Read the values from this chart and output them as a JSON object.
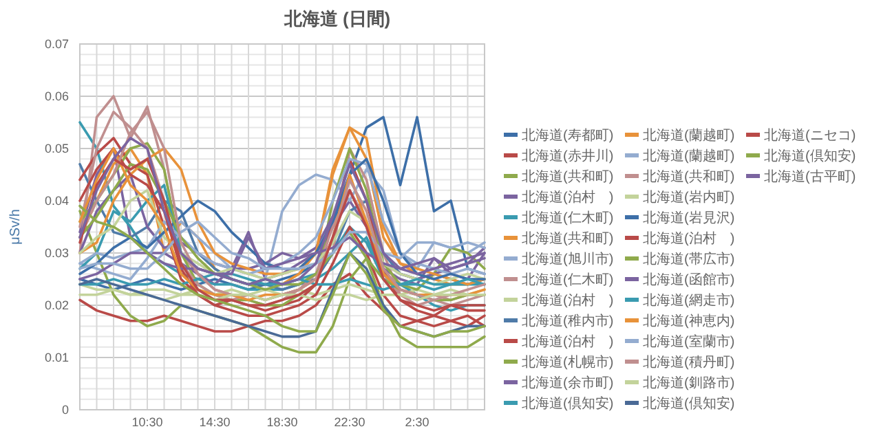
{
  "chart_data": {
    "type": "line",
    "title": "北海道 (日間)",
    "ylabel": "μSv/h",
    "legend": "right",
    "grid": true,
    "marker": "none",
    "line_style": "solid",
    "categories": [
      null,
      null,
      null,
      null,
      "10:30",
      null,
      null,
      null,
      "14:30",
      null,
      null,
      null,
      "18:30",
      null,
      null,
      null,
      "22:30",
      null,
      null,
      null,
      "2:30",
      null,
      null,
      null,
      null
    ],
    "ylim": [
      0,
      0.07
    ],
    "yticks": [
      0,
      {
        "value": 0.002,
        "label": null
      },
      {
        "value": 0.004,
        "label": null
      },
      {
        "value": 0.006,
        "label": null
      },
      {
        "value": 0.008,
        "label": null
      },
      0.01,
      {
        "value": 0.012,
        "label": null
      },
      {
        "value": 0.014,
        "label": null
      },
      {
        "value": 0.016,
        "label": null
      },
      {
        "value": 0.018,
        "label": null
      },
      0.02,
      {
        "value": 0.022,
        "label": null
      },
      {
        "value": 0.024,
        "label": null
      },
      {
        "value": 0.026,
        "label": null
      },
      {
        "value": 0.028,
        "label": null
      },
      0.03,
      {
        "value": 0.032,
        "label": null
      },
      {
        "value": 0.034,
        "label": null
      },
      {
        "value": 0.036,
        "label": null
      },
      {
        "value": 0.038,
        "label": null
      },
      0.04,
      {
        "value": 0.042,
        "label": null
      },
      {
        "value": 0.044,
        "label": null
      },
      {
        "value": 0.046,
        "label": null
      },
      {
        "value": 0.048,
        "label": null
      },
      0.05,
      {
        "value": 0.052,
        "label": null
      },
      {
        "value": 0.054,
        "label": null
      },
      {
        "value": 0.056,
        "label": null
      },
      {
        "value": 0.058,
        "label": null
      },
      0.06,
      {
        "value": 0.062,
        "label": null
      },
      {
        "value": 0.064,
        "label": null
      },
      {
        "value": 0.066,
        "label": null
      },
      {
        "value": 0.068,
        "label": null
      },
      0.07
    ],
    "series": [
      {
        "name": "北海道(寿都町)",
        "color": "#3d6fa8",
        "values": [
          0.025,
          0.024,
          0.023,
          0.024,
          0.025,
          0.024,
          0.023,
          0.024,
          0.025,
          0.024,
          0.023,
          0.024,
          0.025,
          0.026,
          0.028,
          0.035,
          0.045,
          0.054,
          0.056,
          0.043,
          0.056,
          0.038,
          0.04,
          0.027,
          0.026
        ]
      },
      {
        "name": "北海道(赤井川)",
        "color": "#b94a48",
        "values": [
          0.021,
          0.019,
          0.018,
          0.017,
          0.017,
          0.018,
          0.017,
          0.016,
          0.015,
          0.015,
          0.016,
          0.017,
          0.017,
          0.018,
          0.02,
          0.024,
          0.026,
          0.022,
          0.019,
          0.016,
          0.017,
          0.018,
          0.017,
          0.016,
          0.018
        ]
      },
      {
        "name": "北海道(共和町)",
        "color": "#8faa4c",
        "values": [
          0.038,
          0.03,
          0.022,
          0.018,
          0.016,
          0.017,
          0.02,
          0.019,
          0.018,
          0.017,
          0.016,
          0.014,
          0.012,
          0.011,
          0.011,
          0.016,
          0.025,
          0.029,
          0.02,
          0.014,
          0.012,
          0.012,
          0.012,
          0.012,
          0.014
        ]
      },
      {
        "name": "北海道(泊村　)",
        "color": "#7b64a0",
        "values": [
          0.034,
          0.045,
          0.05,
          0.033,
          0.03,
          0.03,
          0.028,
          0.026,
          0.024,
          0.027,
          0.034,
          0.025,
          0.026,
          0.028,
          0.03,
          0.035,
          0.04,
          0.035,
          0.027,
          0.025,
          0.024,
          0.029,
          0.026,
          0.025,
          0.03
        ]
      },
      {
        "name": "北海道(仁木町)",
        "color": "#3a9bb0",
        "values": [
          0.055,
          0.05,
          0.039,
          0.035,
          0.03,
          0.028,
          0.026,
          0.025,
          0.024,
          0.024,
          0.023,
          0.023,
          0.023,
          0.024,
          0.025,
          0.027,
          0.03,
          0.033,
          0.026,
          0.024,
          0.022,
          0.02,
          0.019,
          0.02,
          0.02
        ]
      },
      {
        "name": "北海道(共和町)",
        "color": "#e8923a",
        "values": [
          0.033,
          0.04,
          0.047,
          0.05,
          0.045,
          0.03,
          0.036,
          0.033,
          0.027,
          0.025,
          0.024,
          0.025,
          0.024,
          0.026,
          0.03,
          0.046,
          0.054,
          0.052,
          0.035,
          0.028,
          0.026,
          0.025,
          0.024,
          0.024,
          0.025
        ]
      },
      {
        "name": "北海道(旭川市)",
        "color": "#94acd0",
        "values": [
          0.028,
          0.027,
          0.026,
          0.025,
          0.029,
          0.034,
          0.036,
          0.033,
          0.03,
          0.027,
          0.026,
          0.025,
          0.038,
          0.043,
          0.045,
          0.044,
          0.04,
          0.046,
          0.042,
          0.03,
          0.027,
          0.032,
          0.031,
          0.03,
          0.032
        ]
      },
      {
        "name": "北海道(仁木町)",
        "color": "#c08f8f",
        "values": [
          0.03,
          0.056,
          0.06,
          0.052,
          0.058,
          0.046,
          0.03,
          0.026,
          0.023,
          0.022,
          0.021,
          0.02,
          0.021,
          0.023,
          0.025,
          0.03,
          0.05,
          0.044,
          0.03,
          0.022,
          0.02,
          0.021,
          0.02,
          0.021,
          0.022
        ]
      },
      {
        "name": "北海道(泊村　)",
        "color": "#c3d39b",
        "values": [
          0.024,
          0.023,
          0.023,
          0.022,
          0.023,
          0.023,
          0.022,
          0.023,
          0.022,
          0.023,
          0.022,
          0.023,
          0.022,
          0.023,
          0.022,
          0.023,
          0.024,
          0.023,
          0.022,
          0.022,
          0.023,
          0.022,
          0.023,
          0.022,
          0.023
        ]
      },
      {
        "name": "北海道(稚内市)",
        "color": "#4f7ba8",
        "values": [
          0.047,
          0.04,
          0.034,
          0.033,
          0.035,
          0.04,
          0.038,
          0.03,
          0.027,
          0.025,
          0.024,
          0.024,
          0.023,
          0.024,
          0.025,
          0.03,
          0.038,
          0.04,
          0.03,
          0.026,
          0.025,
          0.026,
          0.025,
          0.024,
          0.025
        ]
      },
      {
        "name": "北海道(泊村　)",
        "color": "#b94a48",
        "values": [
          0.044,
          0.049,
          0.052,
          0.047,
          0.045,
          0.035,
          0.025,
          0.022,
          0.02,
          0.021,
          0.02,
          0.019,
          0.02,
          0.021,
          0.024,
          0.036,
          0.048,
          0.04,
          0.027,
          0.021,
          0.019,
          0.018,
          0.02,
          0.019,
          0.019
        ]
      },
      {
        "name": "北海道(札幌市)",
        "color": "#8faa4c",
        "values": [
          0.036,
          0.04,
          0.045,
          0.05,
          0.051,
          0.046,
          0.03,
          0.024,
          0.022,
          0.021,
          0.021,
          0.02,
          0.02,
          0.022,
          0.024,
          0.04,
          0.05,
          0.042,
          0.028,
          0.024,
          0.023,
          0.026,
          0.031,
          0.03,
          0.027
        ]
      },
      {
        "name": "北海道(余市町)",
        "color": "#7b64a0",
        "values": [
          0.03,
          0.038,
          0.042,
          0.045,
          0.035,
          0.031,
          0.032,
          0.03,
          0.028,
          0.027,
          0.027,
          0.028,
          0.03,
          0.029,
          0.031,
          0.037,
          0.042,
          0.036,
          0.028,
          0.026,
          0.025,
          0.026,
          0.027,
          0.028,
          0.031
        ]
      },
      {
        "name": "北海道(倶知安)",
        "color": "#3a9bb0",
        "values": [
          0.027,
          0.03,
          0.038,
          0.036,
          0.04,
          0.043,
          0.03,
          0.027,
          0.026,
          0.026,
          0.025,
          0.024,
          0.024,
          0.025,
          0.026,
          0.03,
          0.035,
          0.032,
          0.025,
          0.024,
          0.024,
          0.023,
          0.024,
          0.024,
          0.024
        ]
      },
      {
        "name": "北海道(蘭越町)",
        "color": "#e8923a",
        "values": [
          0.03,
          0.032,
          0.04,
          0.045,
          0.048,
          0.05,
          0.046,
          0.036,
          0.03,
          0.028,
          0.027,
          0.026,
          0.026,
          0.027,
          0.03,
          0.045,
          0.054,
          0.048,
          0.033,
          0.028,
          0.027,
          0.026,
          0.025,
          0.024,
          0.025
        ]
      },
      {
        "name": "北海道(蘭越町)",
        "color": "#94acd0",
        "values": [
          0.028,
          0.03,
          0.029,
          0.03,
          0.031,
          0.036,
          0.033,
          0.03,
          0.028,
          0.027,
          0.026,
          0.027,
          0.028,
          0.03,
          0.033,
          0.04,
          0.048,
          0.047,
          0.036,
          0.03,
          0.028,
          0.027,
          0.026,
          0.027,
          0.026
        ]
      },
      {
        "name": "北海道(共和町)",
        "color": "#c08f8f",
        "values": [
          0.035,
          0.05,
          0.057,
          0.054,
          0.05,
          0.04,
          0.028,
          0.024,
          0.022,
          0.021,
          0.022,
          0.021,
          0.022,
          0.023,
          0.026,
          0.035,
          0.042,
          0.036,
          0.026,
          0.022,
          0.021,
          0.022,
          0.021,
          0.022,
          0.022
        ]
      },
      {
        "name": "北海道(岩内町)",
        "color": "#c3d39b",
        "values": [
          0.03,
          0.033,
          0.035,
          0.04,
          0.042,
          0.033,
          0.03,
          0.028,
          0.026,
          0.027,
          0.026,
          0.025,
          0.026,
          0.027,
          0.028,
          0.032,
          0.038,
          0.036,
          0.028,
          0.026,
          0.025,
          0.024,
          0.025,
          0.026,
          0.025
        ]
      },
      {
        "name": "北海道(岩見沢)",
        "color": "#3d6fa8",
        "values": [
          0.026,
          0.028,
          0.031,
          0.033,
          0.031,
          0.034,
          0.037,
          0.04,
          0.038,
          0.034,
          0.031,
          0.028,
          0.027,
          0.027,
          0.03,
          0.036,
          0.045,
          0.048,
          0.04,
          0.03,
          0.026,
          0.025,
          0.026,
          0.025,
          0.025
        ]
      },
      {
        "name": "北海道(泊村　)",
        "color": "#b94a48",
        "values": [
          0.04,
          0.046,
          0.05,
          0.045,
          0.043,
          0.038,
          0.027,
          0.022,
          0.02,
          0.019,
          0.018,
          0.018,
          0.019,
          0.02,
          0.022,
          0.028,
          0.035,
          0.03,
          0.022,
          0.018,
          0.017,
          0.016,
          0.017,
          0.018,
          0.016
        ]
      },
      {
        "name": "北海道(帯広市)",
        "color": "#8faa4c",
        "values": [
          0.033,
          0.037,
          0.042,
          0.047,
          0.046,
          0.04,
          0.033,
          0.029,
          0.026,
          0.025,
          0.024,
          0.023,
          0.024,
          0.024,
          0.026,
          0.03,
          0.034,
          0.029,
          0.025,
          0.023,
          0.022,
          0.021,
          0.021,
          0.022,
          0.022
        ]
      },
      {
        "name": "北海道(函館市)",
        "color": "#7b64a0",
        "values": [
          0.025,
          0.026,
          0.028,
          0.03,
          0.03,
          0.028,
          0.027,
          0.027,
          0.026,
          0.026,
          0.033,
          0.027,
          0.028,
          0.029,
          0.03,
          0.031,
          0.033,
          0.03,
          0.028,
          0.027,
          0.028,
          0.029,
          0.027,
          0.028,
          0.029
        ]
      },
      {
        "name": "北海道(網走市)",
        "color": "#3a9bb0",
        "values": [
          0.024,
          0.024,
          0.025,
          0.024,
          0.024,
          0.025,
          0.024,
          0.025,
          0.026,
          0.025,
          0.024,
          0.025,
          0.024,
          0.025,
          0.024,
          0.024,
          0.025,
          0.024,
          0.023,
          0.024,
          0.025,
          0.024,
          0.024,
          0.025,
          0.024
        ]
      },
      {
        "name": "北海道(神恵内)",
        "color": "#e8923a",
        "values": [
          0.036,
          0.044,
          0.05,
          0.043,
          0.04,
          0.035,
          0.026,
          0.023,
          0.022,
          0.022,
          0.021,
          0.022,
          0.022,
          0.023,
          0.025,
          0.033,
          0.045,
          0.036,
          0.026,
          0.023,
          0.022,
          0.022,
          0.022,
          0.022,
          0.023
        ]
      },
      {
        "name": "北海道(室蘭市)",
        "color": "#94acd0",
        "values": [
          0.027,
          0.028,
          0.028,
          0.027,
          0.027,
          0.03,
          0.034,
          0.036,
          0.033,
          0.03,
          0.029,
          0.027,
          0.027,
          0.027,
          0.028,
          0.03,
          0.034,
          0.034,
          0.03,
          0.029,
          0.032,
          0.032,
          0.031,
          0.032,
          0.031
        ]
      },
      {
        "name": "北海道(積丹町)",
        "color": "#c08f8f",
        "values": [
          0.033,
          0.04,
          0.045,
          0.053,
          0.057,
          0.05,
          0.032,
          0.026,
          0.023,
          0.022,
          0.022,
          0.021,
          0.022,
          0.023,
          0.025,
          0.033,
          0.044,
          0.038,
          0.027,
          0.023,
          0.022,
          0.021,
          0.022,
          0.023,
          0.024
        ]
      },
      {
        "name": "北海道(釧路市)",
        "color": "#c3d39b",
        "values": [
          0.022,
          0.022,
          0.023,
          0.022,
          0.022,
          0.021,
          0.022,
          0.022,
          0.021,
          0.022,
          0.022,
          0.021,
          0.022,
          0.022,
          0.021,
          0.022,
          0.022,
          0.021,
          0.022,
          0.022,
          0.021,
          0.022,
          0.022,
          0.022,
          0.022
        ]
      },
      {
        "name": "北海道(倶知安)",
        "color": "#4a6a96",
        "values": [
          0.024,
          0.025,
          0.024,
          0.023,
          0.022,
          0.021,
          0.02,
          0.019,
          0.018,
          0.017,
          0.016,
          0.015,
          0.014,
          0.014,
          0.015,
          0.023,
          0.03,
          0.027,
          0.02,
          0.016,
          0.015,
          0.014,
          0.015,
          0.016,
          0.016
        ]
      },
      {
        "name": "北海道(ニセコ)",
        "color": "#b94a48",
        "values": [
          0.032,
          0.043,
          0.048,
          0.046,
          0.048,
          0.04,
          0.028,
          0.023,
          0.021,
          0.021,
          0.02,
          0.02,
          0.021,
          0.022,
          0.024,
          0.033,
          0.042,
          0.035,
          0.025,
          0.021,
          0.02,
          0.019,
          0.02,
          0.02,
          0.02
        ]
      },
      {
        "name": "北海道(倶知安)",
        "color": "#8faa4c",
        "values": [
          0.039,
          0.036,
          0.035,
          0.033,
          0.03,
          0.027,
          0.024,
          0.022,
          0.021,
          0.02,
          0.019,
          0.018,
          0.016,
          0.015,
          0.015,
          0.022,
          0.03,
          0.026,
          0.019,
          0.016,
          0.015,
          0.014,
          0.015,
          0.015,
          0.016
        ]
      },
      {
        "name": "北海道(古平町)",
        "color": "#7b64a0",
        "values": [
          0.033,
          0.042,
          0.048,
          0.052,
          0.05,
          0.038,
          0.03,
          0.027,
          0.026,
          0.025,
          0.024,
          0.025,
          0.024,
          0.025,
          0.028,
          0.037,
          0.047,
          0.04,
          0.03,
          0.027,
          0.026,
          0.027,
          0.028,
          0.029,
          0.03
        ]
      }
    ]
  }
}
